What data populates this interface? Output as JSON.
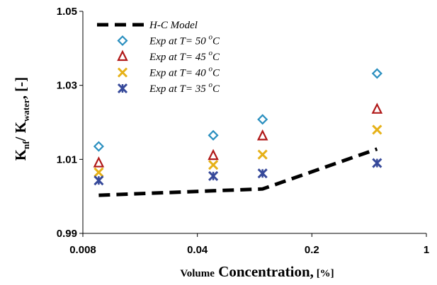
{
  "chart_data": {
    "type": "scatter",
    "xscale": "log",
    "xlim": [
      0.008,
      1
    ],
    "ylim": [
      0.99,
      1.05
    ],
    "x_ticks": [
      {
        "value": 0.008,
        "label": "0.008"
      },
      {
        "value": 0.04,
        "label": "0.04"
      },
      {
        "value": 0.2,
        "label": "0.2"
      },
      {
        "value": 1,
        "label": "1"
      }
    ],
    "y_ticks": [
      {
        "value": 0.99,
        "label": "0.99"
      },
      {
        "value": 1.01,
        "label": "1.01"
      },
      {
        "value": 1.03,
        "label": "1.03"
      },
      {
        "value": 1.05,
        "label": "1.05"
      }
    ],
    "xlabel": {
      "small": "Volume",
      "large": "Concentration,",
      "unit": "[%]"
    },
    "ylabel": {
      "k": "K",
      "nf": "nf",
      "sep": "/ K",
      "water": "water",
      "unit": ", [-]"
    },
    "grid": false,
    "legend_position": "top-left",
    "series": [
      {
        "name": "H-C Model",
        "kind": "line",
        "dash": true,
        "color": "#000000",
        "points": [
          [
            0.01,
            1.0003
          ],
          [
            0.05,
            1.0015
          ],
          [
            0.1,
            1.002
          ],
          [
            0.5,
            1.0128
          ]
        ]
      },
      {
        "name": "Exp at T= 50 °C",
        "temp": "50",
        "marker": "diamond",
        "color": "#2a8fbf",
        "points": [
          [
            0.01,
            1.0135
          ],
          [
            0.05,
            1.0165
          ],
          [
            0.1,
            1.0208
          ],
          [
            0.5,
            1.0332
          ]
        ]
      },
      {
        "name": "Exp at T= 45 °C",
        "temp": "45",
        "marker": "triangle",
        "color": "#b01818",
        "points": [
          [
            0.01,
            1.009
          ],
          [
            0.05,
            1.011
          ],
          [
            0.1,
            1.0163
          ],
          [
            0.5,
            1.0235
          ]
        ]
      },
      {
        "name": "Exp at T= 40 °C",
        "temp": "40",
        "marker": "x",
        "color": "#e6b117",
        "points": [
          [
            0.01,
            1.0065
          ],
          [
            0.05,
            1.0085
          ],
          [
            0.1,
            1.0113
          ],
          [
            0.5,
            1.018
          ]
        ]
      },
      {
        "name": "Exp at T= 35 °C",
        "temp": "35",
        "marker": "star",
        "color": "#36499a",
        "points": [
          [
            0.01,
            1.0043
          ],
          [
            0.05,
            1.0055
          ],
          [
            0.1,
            1.0062
          ],
          [
            0.5,
            1.009
          ]
        ]
      }
    ]
  }
}
